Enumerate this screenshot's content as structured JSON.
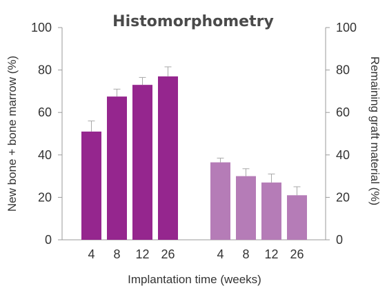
{
  "chart_data": {
    "type": "bar",
    "title": "Histomorphometry",
    "xlabel": "Implantation time (weeks)",
    "ylabel_left": "New bone + bone marrow (%)",
    "ylabel_right": "Remaining graft material (%)",
    "ylim": [
      0,
      100
    ],
    "yticks": [
      0,
      20,
      40,
      60,
      80,
      100
    ],
    "grid": false,
    "groups": [
      {
        "axis": "left",
        "color": "#95268e",
        "categories": [
          "4",
          "8",
          "12",
          "26"
        ],
        "values": [
          51,
          67.5,
          73,
          77
        ],
        "errors": [
          5,
          3.5,
          3.5,
          4.5
        ]
      },
      {
        "axis": "right",
        "color": "#b57cb7",
        "categories": [
          "4",
          "8",
          "12",
          "26"
        ],
        "values": [
          36.5,
          30,
          27,
          21
        ],
        "errors": [
          2,
          3.5,
          4,
          4
        ]
      }
    ]
  }
}
